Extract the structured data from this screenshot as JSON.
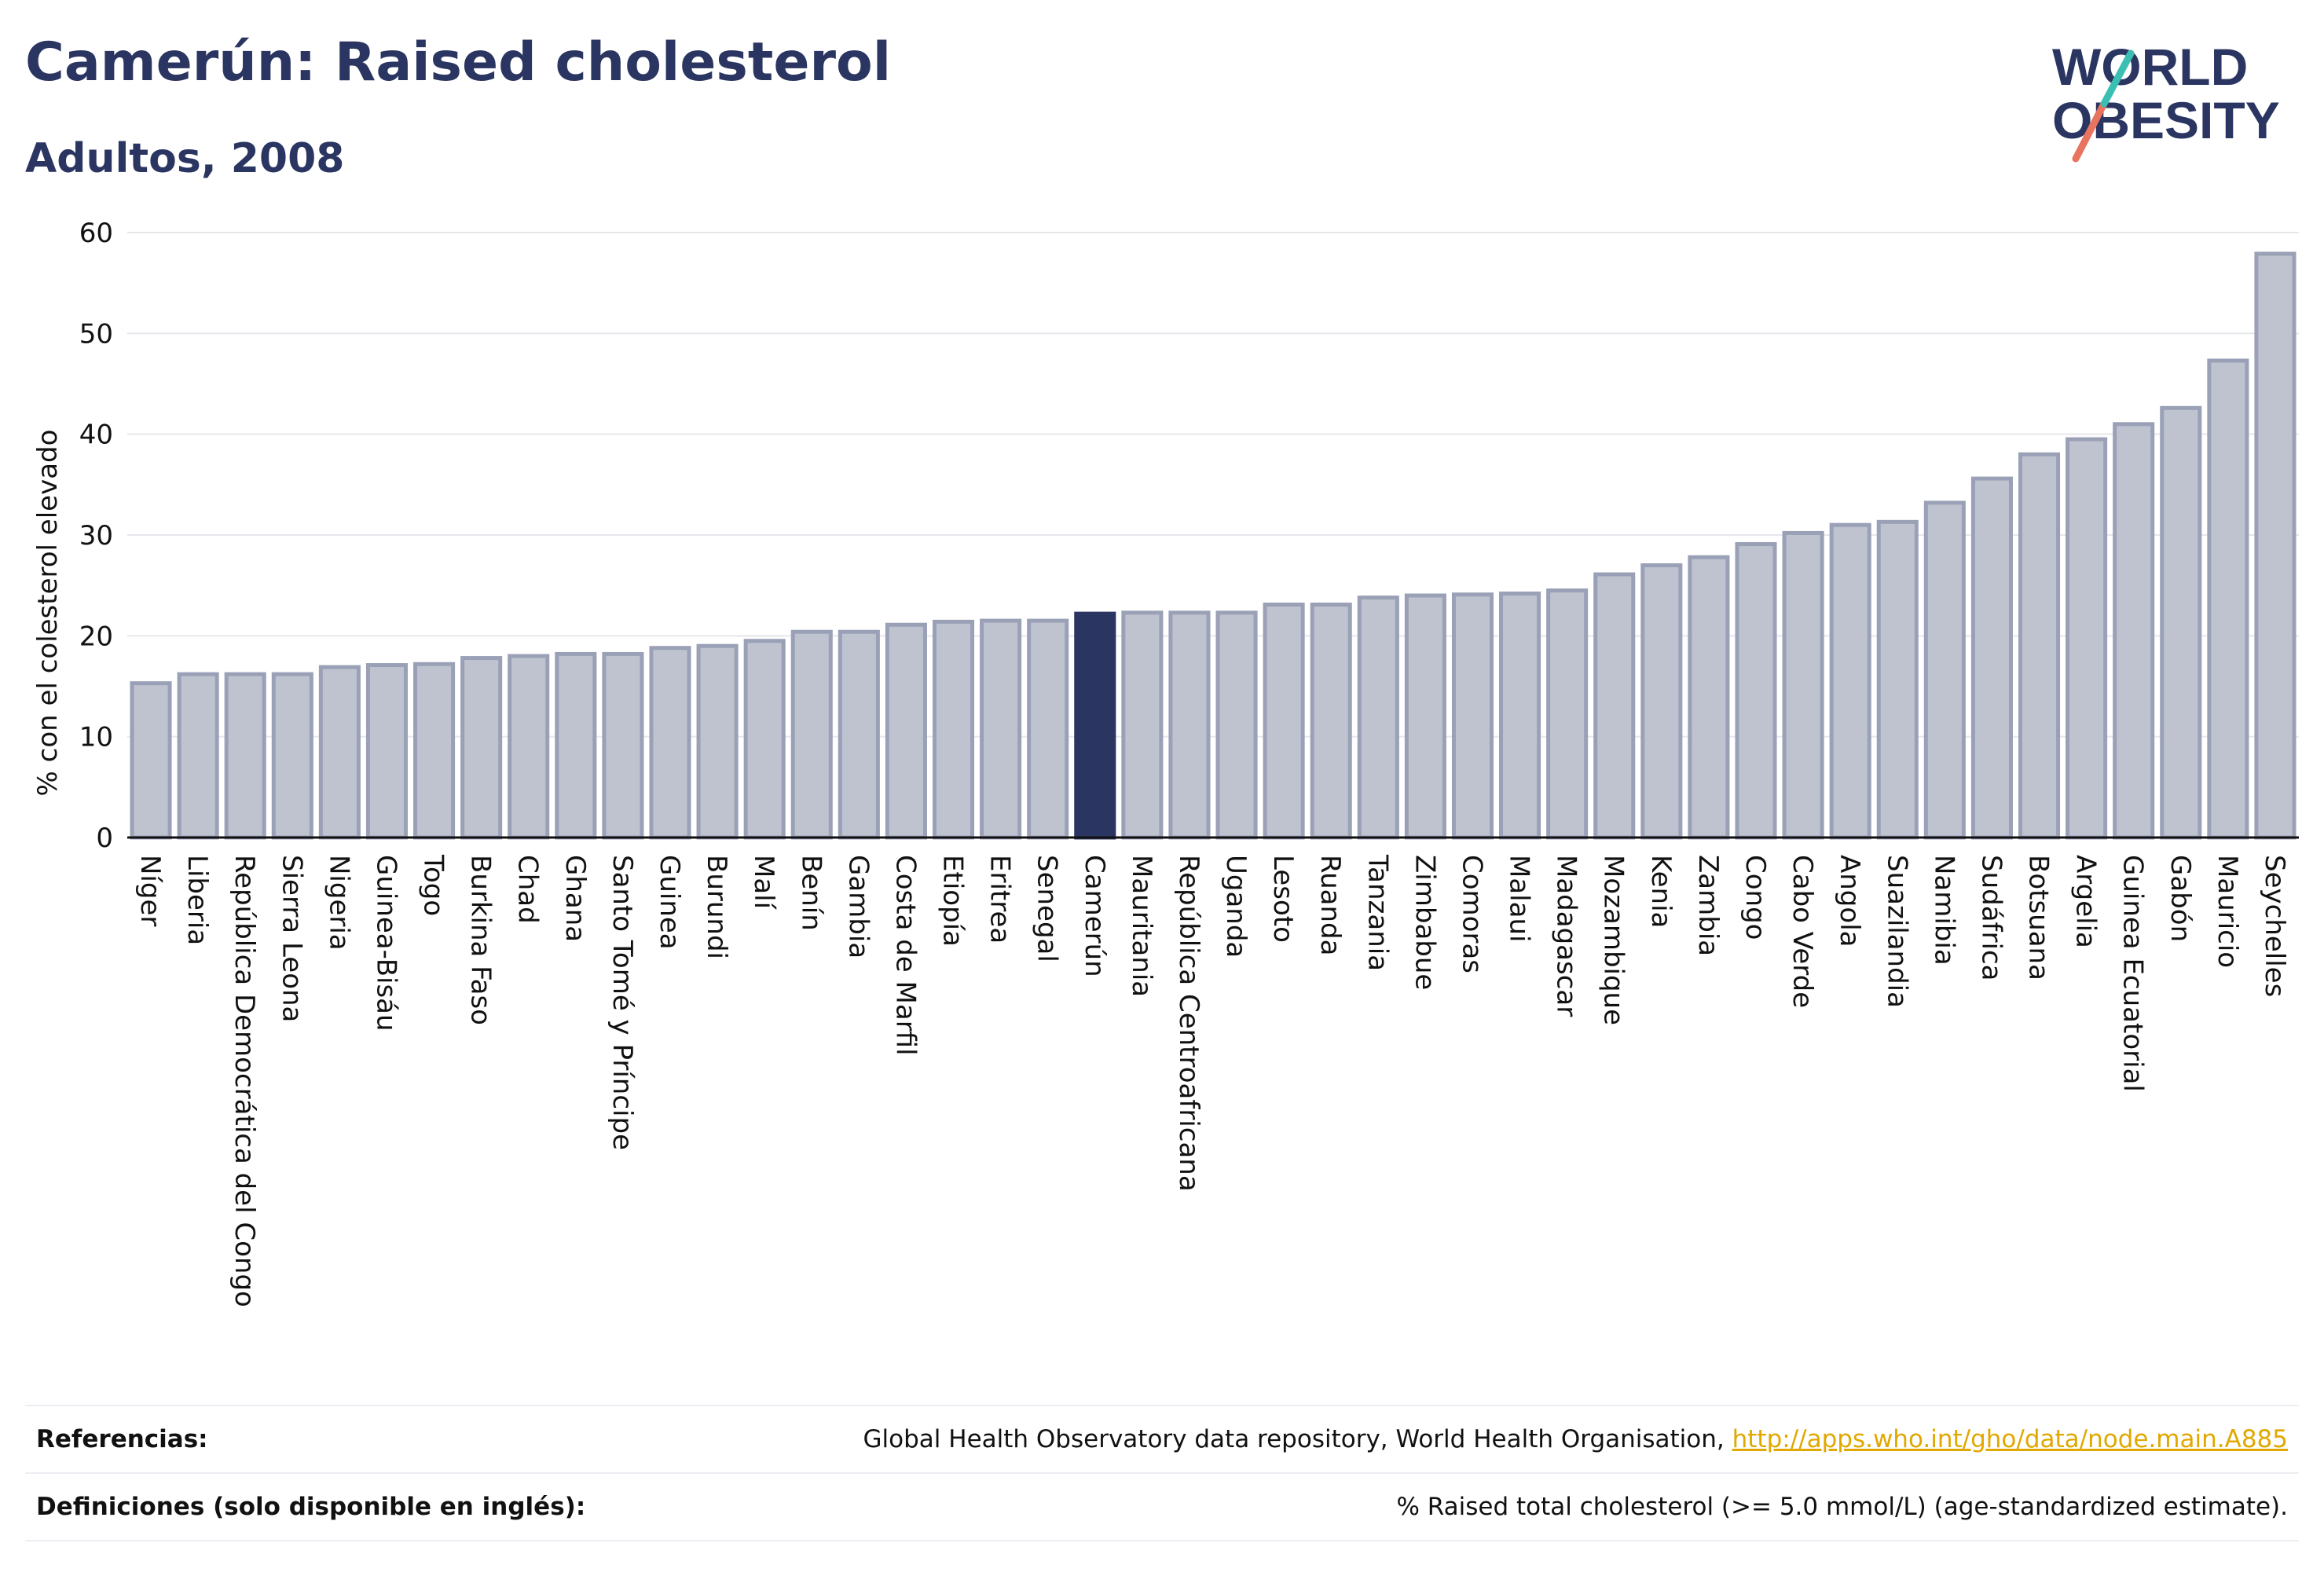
{
  "header": {
    "title": "Camerún: Raised cholesterol",
    "subtitle": "Adultos, 2008"
  },
  "logo": {
    "line1": "WORLD",
    "line2": "OBESITY"
  },
  "colors": {
    "bar": "#bfc3d0",
    "bar_stroke": "#9aa0b6",
    "highlight": "#2b3561",
    "title": "#2b3561",
    "link": "#e0a800"
  },
  "chart_data": {
    "type": "bar",
    "title": "Camerún: Raised cholesterol",
    "subtitle": "Adultos, 2008",
    "xlabel": "",
    "ylabel": "% con el colesterol elevado",
    "ylim": [
      0,
      60
    ],
    "yticks": [
      0,
      10,
      20,
      30,
      40,
      50,
      60
    ],
    "grid": true,
    "highlight": "Camerún",
    "categories": [
      "Níger",
      "Liberia",
      "República Democrática del Congo",
      "Sierra Leona",
      "Nigeria",
      "Guinea-Bisáu",
      "Togo",
      "Burkina Faso",
      "Chad",
      "Ghana",
      "Santo Tomé y Príncipe",
      "Guinea",
      "Burundi",
      "Malí",
      "Benín",
      "Gambia",
      "Costa de Marfil",
      "Etiopía",
      "Eritrea",
      "Senegal",
      "Camerún",
      "Mauritania",
      "República Centroafricana",
      "Uganda",
      "Lesoto",
      "Ruanda",
      "Tanzania",
      "Zimbabue",
      "Comoras",
      "Malaui",
      "Madagascar",
      "Mozambique",
      "Kenia",
      "Zambia",
      "Congo",
      "Cabo Verde",
      "Angola",
      "Suazilandia",
      "Namibia",
      "Sudáfrica",
      "Botsuana",
      "Argelia",
      "Guinea Ecuatorial",
      "Gabón",
      "Mauricio",
      "Seychelles"
    ],
    "values": [
      15.3,
      16.2,
      16.2,
      16.2,
      16.9,
      17.1,
      17.2,
      17.8,
      18.0,
      18.2,
      18.2,
      18.8,
      19.0,
      19.5,
      20.4,
      20.4,
      21.1,
      21.4,
      21.5,
      21.5,
      22.2,
      22.3,
      22.3,
      22.3,
      23.1,
      23.1,
      23.8,
      24.0,
      24.1,
      24.2,
      24.5,
      26.1,
      27.0,
      27.8,
      29.1,
      30.2,
      31.0,
      31.3,
      33.2,
      35.6,
      38.0,
      39.5,
      41.0,
      42.6,
      47.3,
      57.9
    ]
  },
  "footer": {
    "references_label": "Referencias:",
    "references_text": "Global Health Observatory data repository, World Health Organisation, ",
    "references_link": "http://apps.who.int/gho/data/node.main.A885",
    "definitions_label": "Definiciones (solo disponible en inglés):",
    "definitions_text": "% Raised total cholesterol (>= 5.0 mmol/L) (age-standardized estimate)."
  }
}
